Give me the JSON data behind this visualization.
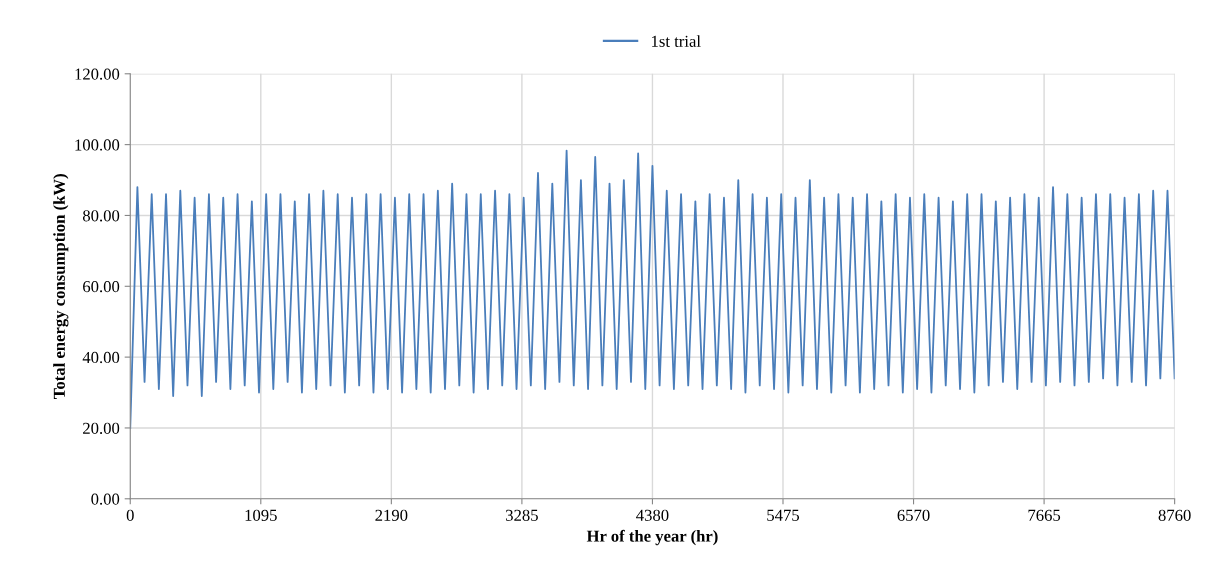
{
  "chart_data": {
    "type": "line",
    "xlabel": "Hr of the year (hr)",
    "ylabel": "Total energy consumption (kW)",
    "x": [
      0,
      60,
      120,
      180,
      240,
      300,
      360,
      420,
      480,
      540,
      600,
      660,
      720,
      780,
      840,
      900,
      960,
      1020,
      1080,
      1140,
      1200,
      1260,
      1320,
      1380,
      1440,
      1500,
      1560,
      1620,
      1680,
      1740,
      1800,
      1860,
      1920,
      1980,
      2040,
      2100,
      2160,
      2220,
      2280,
      2340,
      2400,
      2460,
      2520,
      2580,
      2640,
      2700,
      2760,
      2820,
      2880,
      2940,
      3000,
      3060,
      3120,
      3180,
      3240,
      3300,
      3360,
      3420,
      3480,
      3540,
      3600,
      3660,
      3720,
      3780,
      3840,
      3900,
      3960,
      4020,
      4080,
      4140,
      4200,
      4260,
      4320,
      4380,
      4440,
      4500,
      4560,
      4620,
      4680,
      4740,
      4800,
      4860,
      4920,
      4980,
      5040,
      5100,
      5160,
      5220,
      5280,
      5340,
      5400,
      5460,
      5520,
      5580,
      5640,
      5700,
      5760,
      5820,
      5880,
      5940,
      6000,
      6060,
      6120,
      6180,
      6240,
      6300,
      6360,
      6420,
      6480,
      6540,
      6600,
      6660,
      6720,
      6780,
      6840,
      6900,
      6960,
      7020,
      7080,
      7140,
      7200,
      7260,
      7320,
      7380,
      7440,
      7500,
      7560,
      7620,
      7680,
      7740,
      7800,
      7860,
      7920,
      7980,
      8040,
      8100,
      8160,
      8220,
      8280,
      8340,
      8400,
      8460,
      8520,
      8580,
      8640,
      8700,
      8760
    ],
    "series": [
      {
        "name": "1st trial",
        "color": "#4a7ebb",
        "values": [
          20,
          88,
          33,
          86,
          31,
          86,
          29,
          87,
          32,
          85,
          29,
          86,
          33,
          85,
          31,
          86,
          32,
          84,
          30,
          86,
          31,
          86,
          33,
          84,
          30,
          86,
          31,
          87,
          32,
          86,
          30,
          85,
          32,
          86,
          30,
          86,
          31,
          85,
          30,
          86,
          31,
          86,
          30,
          87,
          31,
          89,
          32,
          86,
          30,
          86,
          31,
          87,
          32,
          86,
          31,
          85,
          32,
          92,
          31,
          89,
          33,
          98.3,
          32,
          90,
          31,
          96.5,
          32,
          89,
          31,
          90,
          33,
          97.5,
          31,
          94,
          32,
          87,
          31,
          86,
          32,
          84,
          31,
          86,
          32,
          85,
          31,
          90,
          30,
          86,
          32,
          85,
          31,
          86,
          30,
          85,
          32,
          90,
          31,
          85,
          30,
          86,
          32,
          85,
          30,
          86,
          31,
          84,
          32,
          86,
          30,
          85,
          31,
          86,
          30,
          85,
          32,
          84,
          31,
          86,
          30,
          86,
          32,
          84,
          33,
          85,
          31,
          86,
          33,
          85,
          32,
          88,
          33,
          86,
          32,
          85,
          33,
          86,
          34,
          86,
          32,
          85,
          33,
          86,
          32,
          87,
          34,
          87,
          34
        ]
      }
    ],
    "xlim": [
      0,
      8760
    ],
    "xticks": [
      0,
      1095,
      2190,
      3285,
      4380,
      5475,
      6570,
      7665,
      8760
    ],
    "ylim": [
      0,
      120
    ],
    "yticks": [
      {
        "value": 0,
        "label": "0.00"
      },
      {
        "value": 20,
        "label": "20.00"
      },
      {
        "value": 40,
        "label": "40.00"
      },
      {
        "value": 60,
        "label": "60.00"
      },
      {
        "value": 80,
        "label": "80.00"
      },
      {
        "value": 100,
        "label": "100.00"
      },
      {
        "value": 120,
        "label": "120.00"
      }
    ],
    "grid": true,
    "legend": "top",
    "marker": "none",
    "line_style": "solid"
  }
}
